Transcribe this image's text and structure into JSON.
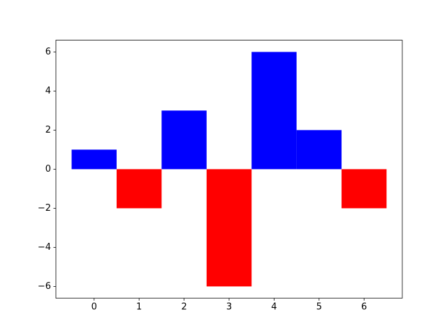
{
  "chart_data": {
    "type": "bar",
    "x": [
      0,
      1,
      2,
      3,
      4,
      5,
      6
    ],
    "values": [
      1,
      -2,
      3,
      -6,
      6,
      2,
      -2
    ],
    "colors": [
      "#0000ff",
      "#ff0000",
      "#0000ff",
      "#ff0000",
      "#0000ff",
      "#0000ff",
      "#ff0000"
    ],
    "bar_width": 1,
    "xlim": [
      -0.85,
      6.85
    ],
    "xticks": [
      0,
      1,
      2,
      3,
      4,
      5,
      6
    ],
    "ylim": [
      -6.6,
      6.6
    ],
    "yticks": [
      {
        "value": -6,
        "label": "−6"
      },
      {
        "value": -4,
        "label": "−4"
      },
      {
        "value": -2,
        "label": "−2"
      },
      0,
      2,
      4,
      6
    ],
    "grid": false
  }
}
